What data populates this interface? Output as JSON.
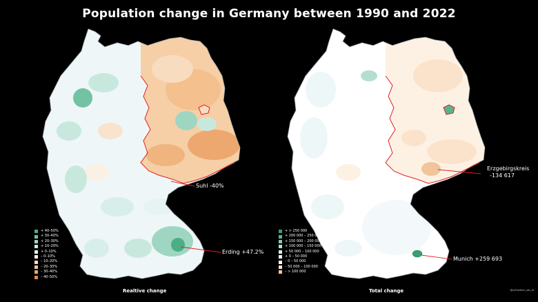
{
  "title": "Population change in Germany between 1990 and 2022",
  "left_map": {
    "caption": "Realtive change",
    "legend": [
      {
        "label": "+ 40–50%",
        "color": "#4cae86"
      },
      {
        "label": "+ 30–40%",
        "color": "#72c2a3"
      },
      {
        "label": "+ 20–30%",
        "color": "#9fd6c1"
      },
      {
        "label": "+ 10–20%",
        "color": "#c8e8de"
      },
      {
        "label": "+  0–10%",
        "color": "#e6f3f3"
      },
      {
        "label": "–   0–10%",
        "color": "#fbf0e4"
      },
      {
        "label": "– 10–20%",
        "color": "#f8dcc0"
      },
      {
        "label": "– 20–30%",
        "color": "#f4c397"
      },
      {
        "label": "– 30–40%",
        "color": "#eba56d"
      },
      {
        "label": "– 40–50%",
        "color": "#e08a4c"
      }
    ],
    "annotations": {
      "suhl": "Suhl -40%",
      "erding": "Erding +47.2%"
    }
  },
  "right_map": {
    "caption": "Total change",
    "legend": [
      {
        "label": "+ > 250 000",
        "color": "#3a9e70"
      },
      {
        "label": "+ 200 000 – 250 000",
        "color": "#58b58b"
      },
      {
        "label": "+ 150 000 – 200 000",
        "color": "#86cbae"
      },
      {
        "label": "+ 100 000 – 150 000",
        "color": "#b4dfcf"
      },
      {
        "label": "+ 50 000 – 100 000",
        "color": "#d8eeea"
      },
      {
        "label": "+ 0 – 50 000",
        "color": "#eef7f8"
      },
      {
        "label": "– 0 – 50 000",
        "color": "#ffffff"
      },
      {
        "label": "– 50 000 – 100 000",
        "color": "#fbe3cb"
      },
      {
        "label": "– > 100 000",
        "color": "#f2c49a"
      }
    ],
    "annotations": {
      "erzgebirge_name": "Erzgebirgskreis",
      "erzgebirge_value": "-134 617",
      "munich": "Munich +259 693"
    }
  },
  "credit": "@u/Friedrich_der_III",
  "colors": {
    "border": "#e02020",
    "background": "#000000",
    "outline": "#ffffff"
  }
}
